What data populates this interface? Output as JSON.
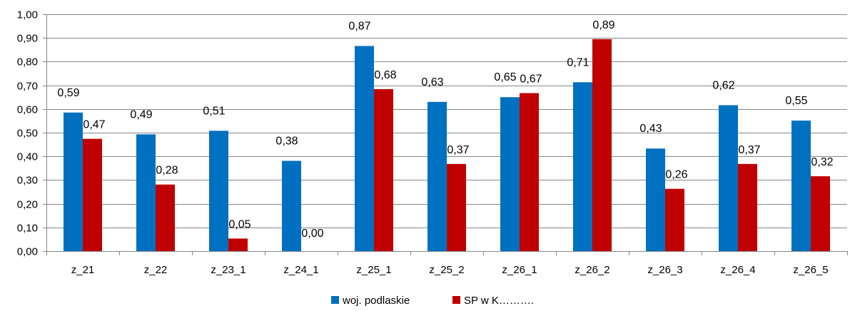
{
  "chart_data": {
    "type": "bar",
    "title": "",
    "xlabel": "",
    "ylabel": "",
    "ylim": [
      0,
      1
    ],
    "ytick_step": 0.1,
    "yticks": [
      "0,00",
      "0,10",
      "0,20",
      "0,30",
      "0,40",
      "0,50",
      "0,60",
      "0,70",
      "0,80",
      "0,90",
      "1,00"
    ],
    "grid": true,
    "legend_position": "bottom",
    "categories": [
      "z_21",
      "z_22",
      "z_23_1",
      "z_24_1",
      "z_25_1",
      "z_25_2",
      "z_26_1",
      "z_26_2",
      "z_26_3",
      "z_26_4",
      "z_26_5"
    ],
    "series": [
      {
        "name": "woj. podlaskie",
        "color": "#0070C0",
        "values": [
          0.585,
          0.493,
          0.508,
          0.381,
          0.866,
          0.63,
          0.65,
          0.713,
          0.433,
          0.616,
          0.551
        ],
        "labels": [
          "0,59",
          "0,49",
          "0,51",
          "0,38",
          "0,87",
          "0,63",
          "0,65",
          "0,71",
          "0,43",
          "0,62",
          "0,55"
        ]
      },
      {
        "name": "SP w K……….",
        "color": "#C00000",
        "values": [
          0.474,
          0.281,
          0.053,
          0.0,
          0.684,
          0.368,
          0.667,
          0.895,
          0.263,
          0.368,
          0.316
        ],
        "labels": [
          "0,47",
          "0,28",
          "0,05",
          "0,00",
          "0,68",
          "0,37",
          "0,67",
          "0,89",
          "0,26",
          "0,37",
          "0,32"
        ]
      }
    ]
  }
}
